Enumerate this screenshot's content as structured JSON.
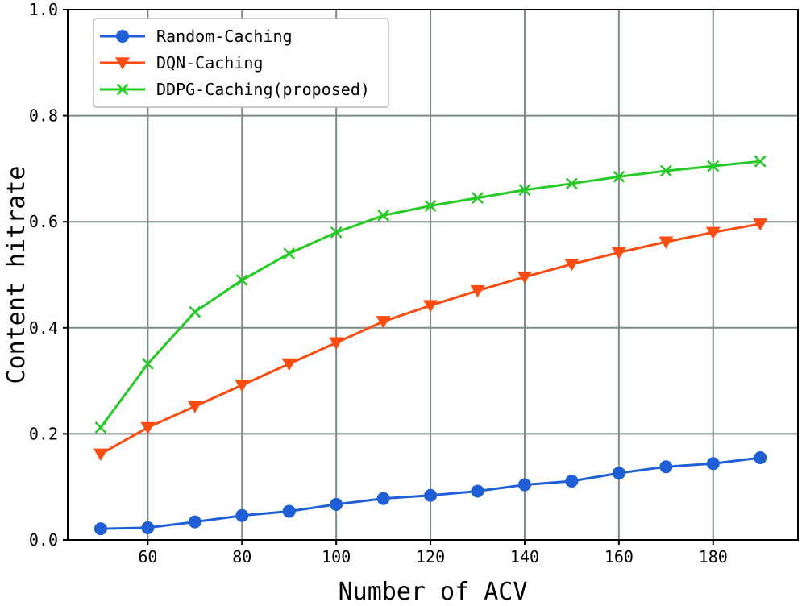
{
  "chart_data": {
    "type": "line",
    "title": "",
    "xlabel": "Number of ACV",
    "ylabel": "Content hitrate",
    "xlim": [
      43,
      198
    ],
    "ylim": [
      0.0,
      1.0
    ],
    "x": [
      50,
      60,
      70,
      80,
      90,
      100,
      110,
      120,
      130,
      140,
      150,
      160,
      170,
      180,
      190
    ],
    "xticks": [
      60,
      80,
      100,
      120,
      140,
      160,
      180
    ],
    "yticks": [
      "0.0",
      "0.2",
      "0.4",
      "0.6",
      "0.8",
      "1.0"
    ],
    "grid": true,
    "legend_position": "upper-left",
    "series": [
      {
        "name": "Random-Caching",
        "color": "#1f5fd6",
        "marker": "circle",
        "values": [
          0.021,
          0.023,
          0.034,
          0.046,
          0.054,
          0.067,
          0.078,
          0.084,
          0.092,
          0.104,
          0.111,
          0.126,
          0.138,
          0.144,
          0.155
        ]
      },
      {
        "name": "DQN-Caching",
        "color": "#ff4a10",
        "marker": "triangle-down",
        "values": [
          0.162,
          0.212,
          0.252,
          0.292,
          0.332,
          0.372,
          0.412,
          0.442,
          0.47,
          0.496,
          0.52,
          0.542,
          0.562,
          0.58,
          0.596
        ]
      },
      {
        "name": "DDPG-Caching(proposed)",
        "color": "#22cc22",
        "marker": "x",
        "values": [
          0.212,
          0.332,
          0.43,
          0.49,
          0.54,
          0.58,
          0.612,
          0.63,
          0.645,
          0.66,
          0.672,
          0.685,
          0.696,
          0.705,
          0.714
        ]
      }
    ]
  }
}
